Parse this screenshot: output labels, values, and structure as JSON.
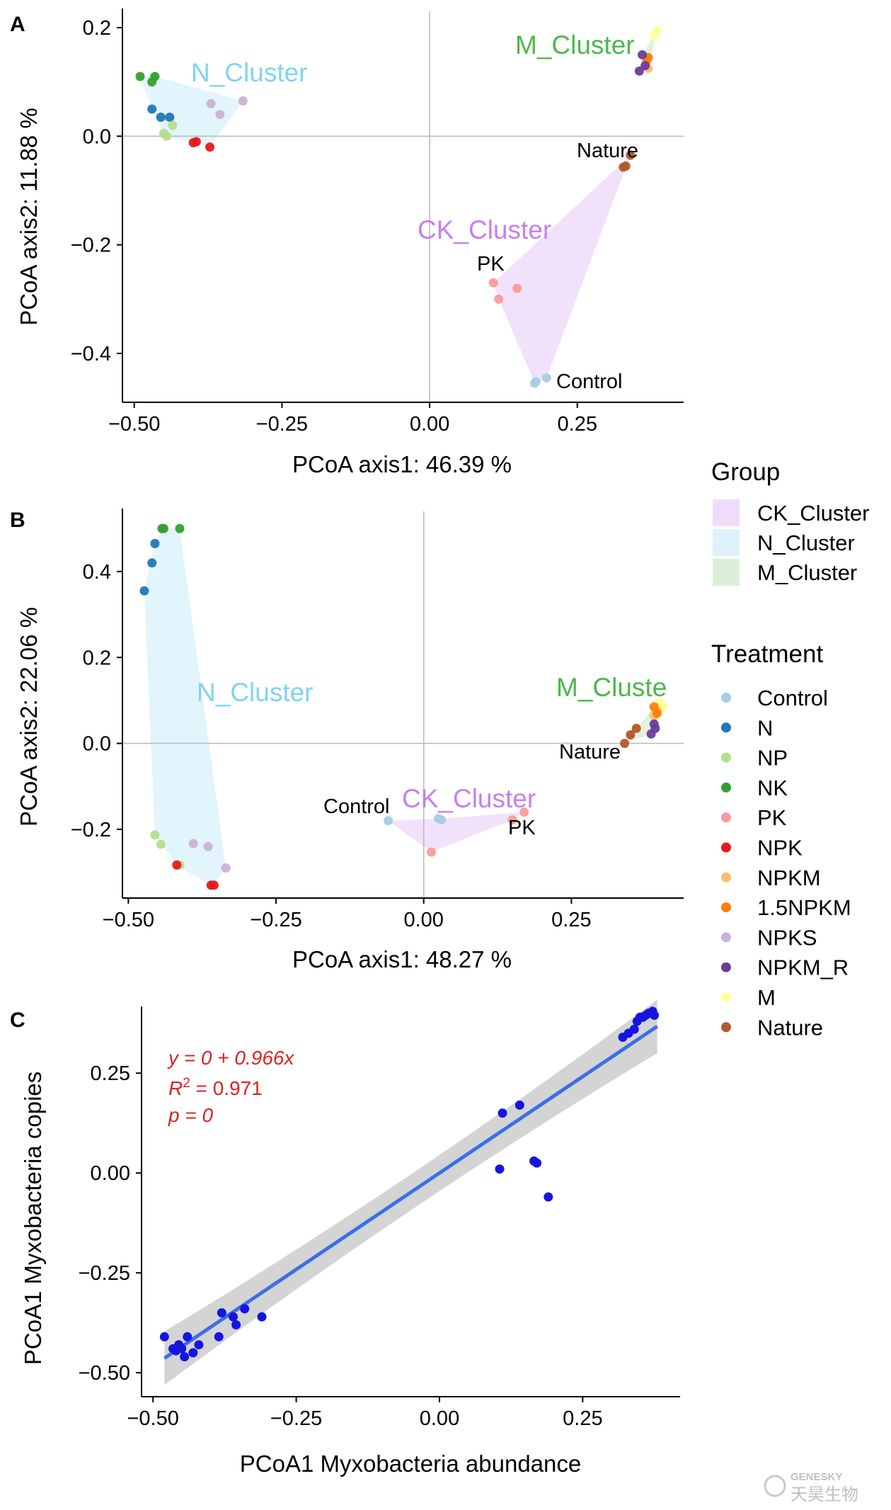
{
  "panels": [
    {
      "letter": "A",
      "xlabel": "PCoA axis1:  46.39 %",
      "ylabel": "PCoA axis2:  11.88 %",
      "x_ticks": [
        "−0.50",
        "−0.25",
        "0.00",
        "0.25"
      ],
      "y_ticks": [
        "0.2",
        "0.0",
        "−0.2",
        "−0.4"
      ],
      "cluster_labels": [
        {
          "text": "N_Cluster",
          "group": "N_Cluster"
        },
        {
          "text": "M_Cluster",
          "group": "M_Cluster"
        },
        {
          "text": "CK_Cluster",
          "group": "CK_Cluster"
        }
      ],
      "point_labels": [
        "Nature",
        "PK",
        "Control"
      ]
    },
    {
      "letter": "B",
      "xlabel": "PCoA axis1:  48.27 %",
      "ylabel": "PCoA axis2:  22.06 %",
      "x_ticks": [
        "−0.50",
        "−0.25",
        "0.00",
        "0.25"
      ],
      "y_ticks": [
        "0.4",
        "0.2",
        "0.0",
        "−0.2"
      ],
      "cluster_labels": [
        {
          "text": "N_Cluster",
          "group": "N_Cluster"
        },
        {
          "text": "M_Cluste",
          "group": "M_Cluster"
        },
        {
          "text": "CK_Cluster",
          "group": "CK_Cluster"
        }
      ],
      "point_labels": [
        "Nature",
        "Control",
        "PK"
      ]
    },
    {
      "letter": "C",
      "xlabel": "PCoA1 Myxobacteria abundance",
      "ylabel": "PCoA1 Myxobacteria copies",
      "x_ticks": [
        "−0.50",
        "−0.25",
        "0.00",
        "0.25"
      ],
      "y_ticks": [
        "0.25",
        "0.00",
        "−0.25",
        "−0.50"
      ]
    }
  ],
  "legend": {
    "group_title": "Group",
    "groups": [
      {
        "label": "CK_Cluster",
        "color": "#f0dcfa"
      },
      {
        "label": "N_Cluster",
        "color": "#ddf2fb"
      },
      {
        "label": "M_Cluster",
        "color": "#dcefd8"
      }
    ],
    "treatment_title": "Treatment",
    "treatments": [
      {
        "label": "Control",
        "color": "#a6cee3"
      },
      {
        "label": "N",
        "color": "#1f78b4"
      },
      {
        "label": "NP",
        "color": "#b2df8a"
      },
      {
        "label": "NK",
        "color": "#33a02c"
      },
      {
        "label": "PK",
        "color": "#fb9a99"
      },
      {
        "label": "NPK",
        "color": "#e31a1c"
      },
      {
        "label": "NPKM",
        "color": "#fdbf6f"
      },
      {
        "label": "1.5NPKM",
        "color": "#ff7f00"
      },
      {
        "label": "NPKS",
        "color": "#cab2d6"
      },
      {
        "label": "NPKM_R",
        "color": "#6a3d9a"
      },
      {
        "label": "M",
        "color": "#ffff99"
      },
      {
        "label": "Nature",
        "color": "#b15928"
      }
    ]
  },
  "regression": {
    "equation": "y = 0 + 0.966x",
    "r2_lhs": "R",
    "r2_sup": "2",
    "r2_rhs": " = 0.971",
    "p": "p = 0"
  },
  "watermark": {
    "text": "GENESKY",
    "chinese": "天昊生物"
  },
  "colors": {
    "cluster_text": {
      "CK_Cluster": "#c77ef0",
      "N_Cluster": "#7fd4f2",
      "M_Cluster": "#4cb84c"
    },
    "hull_fill": {
      "CK_Cluster": "#f0dcfa",
      "N_Cluster": "#ddf2fb",
      "M_Cluster": "#dcefd8"
    },
    "regression_line": "#3a6fe8",
    "confidence_band": "#cccccc",
    "scatter_point": "#1515e0",
    "equation_text": "#dd2222"
  },
  "chart_data": [
    {
      "type": "scatter",
      "panel": "A",
      "xlim": [
        -0.52,
        0.43
      ],
      "ylim": [
        -0.49,
        0.23
      ],
      "reference_lines": {
        "x": 0,
        "y": 0
      },
      "points": [
        {
          "t": "NK",
          "x": -0.49,
          "y": 0.11
        },
        {
          "t": "NK",
          "x": -0.47,
          "y": 0.1
        },
        {
          "t": "NK",
          "x": -0.465,
          "y": 0.11
        },
        {
          "t": "N",
          "x": -0.47,
          "y": 0.05
        },
        {
          "t": "N",
          "x": -0.455,
          "y": 0.035
        },
        {
          "t": "N",
          "x": -0.44,
          "y": 0.035
        },
        {
          "t": "NP",
          "x": -0.45,
          "y": 0.005
        },
        {
          "t": "NP",
          "x": -0.435,
          "y": 0.02
        },
        {
          "t": "NP",
          "x": -0.445,
          "y": 0.0
        },
        {
          "t": "NPK",
          "x": -0.395,
          "y": -0.01
        },
        {
          "t": "NPK",
          "x": -0.4,
          "y": -0.012
        },
        {
          "t": "NPK",
          "x": -0.372,
          "y": -0.02
        },
        {
          "t": "NPKS",
          "x": -0.37,
          "y": 0.06
        },
        {
          "t": "NPKS",
          "x": -0.355,
          "y": 0.04
        },
        {
          "t": "NPKS",
          "x": -0.316,
          "y": 0.065
        },
        {
          "t": "M",
          "x": 0.385,
          "y": 0.195
        },
        {
          "t": "M",
          "x": 0.38,
          "y": 0.185
        },
        {
          "t": "NPKM",
          "x": 0.37,
          "y": 0.125
        },
        {
          "t": "NPKM",
          "x": 0.365,
          "y": 0.13
        },
        {
          "t": "1.5NPKM",
          "x": 0.37,
          "y": 0.145
        },
        {
          "t": "1.5NPKM",
          "x": 0.368,
          "y": 0.14
        },
        {
          "t": "NPKM_R",
          "x": 0.36,
          "y": 0.15
        },
        {
          "t": "NPKM_R",
          "x": 0.365,
          "y": 0.13
        },
        {
          "t": "NPKM_R",
          "x": 0.355,
          "y": 0.12
        },
        {
          "t": "Nature",
          "x": 0.34,
          "y": -0.035
        },
        {
          "t": "Nature",
          "x": 0.332,
          "y": -0.055
        },
        {
          "t": "Nature",
          "x": 0.328,
          "y": -0.057
        },
        {
          "t": "PK",
          "x": 0.108,
          "y": -0.27
        },
        {
          "t": "PK",
          "x": 0.148,
          "y": -0.28
        },
        {
          "t": "PK",
          "x": 0.117,
          "y": -0.3
        },
        {
          "t": "Control",
          "x": 0.178,
          "y": -0.455
        },
        {
          "t": "Control",
          "x": 0.198,
          "y": -0.445
        },
        {
          "t": "Control",
          "x": 0.18,
          "y": -0.452
        }
      ]
    },
    {
      "type": "scatter",
      "panel": "B",
      "xlim": [
        -0.51,
        0.44
      ],
      "ylim": [
        -0.36,
        0.54
      ],
      "reference_lines": {
        "x": 0,
        "y": 0
      },
      "points": [
        {
          "t": "NK",
          "x": -0.443,
          "y": 0.5
        },
        {
          "t": "NK",
          "x": -0.44,
          "y": 0.5
        },
        {
          "t": "NK",
          "x": -0.413,
          "y": 0.5
        },
        {
          "t": "N",
          "x": -0.455,
          "y": 0.465
        },
        {
          "t": "N",
          "x": -0.46,
          "y": 0.42
        },
        {
          "t": "N",
          "x": -0.473,
          "y": 0.355
        },
        {
          "t": "NP",
          "x": -0.455,
          "y": -0.213
        },
        {
          "t": "NP",
          "x": -0.445,
          "y": -0.235
        },
        {
          "t": "NP",
          "x": -0.413,
          "y": -0.283
        },
        {
          "t": "NPK",
          "x": -0.418,
          "y": -0.283
        },
        {
          "t": "NPK",
          "x": -0.36,
          "y": -0.33
        },
        {
          "t": "NPK",
          "x": -0.355,
          "y": -0.33
        },
        {
          "t": "NPKS",
          "x": -0.39,
          "y": -0.233
        },
        {
          "t": "NPKS",
          "x": -0.365,
          "y": -0.24
        },
        {
          "t": "NPKS",
          "x": -0.335,
          "y": -0.29
        },
        {
          "t": "M",
          "x": 0.4,
          "y": 0.095
        },
        {
          "t": "M",
          "x": 0.405,
          "y": 0.085
        },
        {
          "t": "NPKM",
          "x": 0.395,
          "y": 0.075
        },
        {
          "t": "NPKM",
          "x": 0.39,
          "y": 0.065
        },
        {
          "t": "1.5NPKM",
          "x": 0.39,
          "y": 0.085
        },
        {
          "t": "1.5NPKM",
          "x": 0.395,
          "y": 0.07
        },
        {
          "t": "NPKM_R",
          "x": 0.39,
          "y": 0.045
        },
        {
          "t": "NPKM_R",
          "x": 0.392,
          "y": 0.035
        },
        {
          "t": "NPKM_R",
          "x": 0.385,
          "y": 0.022
        },
        {
          "t": "Nature",
          "x": 0.36,
          "y": 0.035
        },
        {
          "t": "Nature",
          "x": 0.35,
          "y": 0.02
        },
        {
          "t": "Nature",
          "x": 0.34,
          "y": 0.0
        },
        {
          "t": "PK",
          "x": 0.15,
          "y": -0.178
        },
        {
          "t": "PK",
          "x": 0.17,
          "y": -0.16
        },
        {
          "t": "PK",
          "x": 0.013,
          "y": -0.253
        },
        {
          "t": "Control",
          "x": -0.06,
          "y": -0.18
        },
        {
          "t": "Control",
          "x": 0.025,
          "y": -0.175
        },
        {
          "t": "Control",
          "x": 0.03,
          "y": -0.178
        }
      ],
      "hulls": {
        "CK_Cluster": [
          [
            -0.06,
            -0.18
          ],
          [
            0.03,
            -0.175
          ],
          [
            0.17,
            -0.16
          ],
          [
            0.15,
            -0.178
          ],
          [
            0.013,
            -0.253
          ]
        ],
        "N_Cluster": [
          [
            -0.473,
            0.355
          ],
          [
            -0.455,
            0.465
          ],
          [
            -0.443,
            0.5
          ],
          [
            -0.413,
            0.5
          ],
          [
            -0.335,
            -0.29
          ],
          [
            -0.355,
            -0.33
          ],
          [
            -0.36,
            -0.33
          ],
          [
            -0.418,
            -0.283
          ],
          [
            -0.455,
            -0.213
          ]
        ],
        "M_Cluster": [
          [
            0.34,
            0.0
          ],
          [
            0.385,
            0.022
          ],
          [
            0.405,
            0.085
          ],
          [
            0.4,
            0.095
          ],
          [
            0.39,
            0.085
          ]
        ]
      }
    },
    {
      "type": "scatter",
      "panel": "C",
      "xlabel": "PCoA1 Myxobacteria abundance",
      "ylabel": "PCoA1 Myxobacteria copies",
      "xlim": [
        -0.52,
        0.42
      ],
      "ylim": [
        -0.56,
        0.41
      ],
      "regression": {
        "intercept": 0,
        "slope": 0.966,
        "r2": 0.971,
        "p": 0,
        "x_range": [
          -0.48,
          0.38
        ]
      },
      "points": [
        [
          -0.48,
          -0.41
        ],
        [
          -0.465,
          -0.44
        ],
        [
          -0.46,
          -0.445
        ],
        [
          -0.455,
          -0.43
        ],
        [
          -0.45,
          -0.44
        ],
        [
          -0.445,
          -0.46
        ],
        [
          -0.44,
          -0.41
        ],
        [
          -0.43,
          -0.45
        ],
        [
          -0.42,
          -0.43
        ],
        [
          -0.385,
          -0.41
        ],
        [
          -0.38,
          -0.35
        ],
        [
          -0.36,
          -0.36
        ],
        [
          -0.355,
          -0.38
        ],
        [
          -0.34,
          -0.34
        ],
        [
          -0.31,
          -0.36
        ],
        [
          0.105,
          0.01
        ],
        [
          0.11,
          0.15
        ],
        [
          0.14,
          0.17
        ],
        [
          0.165,
          0.03
        ],
        [
          0.17,
          0.025
        ],
        [
          0.19,
          -0.06
        ],
        [
          0.32,
          0.34
        ],
        [
          0.33,
          0.35
        ],
        [
          0.34,
          0.36
        ],
        [
          0.345,
          0.38
        ],
        [
          0.35,
          0.39
        ],
        [
          0.355,
          0.39
        ],
        [
          0.36,
          0.395
        ],
        [
          0.365,
          0.4
        ],
        [
          0.37,
          0.4
        ],
        [
          0.372,
          0.405
        ],
        [
          0.375,
          0.395
        ]
      ]
    }
  ]
}
